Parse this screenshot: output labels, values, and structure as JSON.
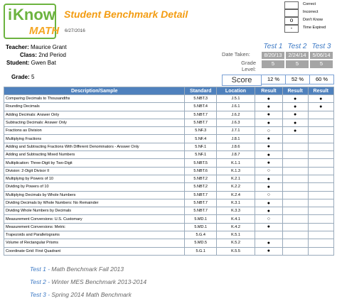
{
  "header": {
    "logo_i": "i",
    "logo_know": "Know",
    "logo_math": "MATH",
    "title": "Student Benchmark Detail",
    "date": "6/27/2016"
  },
  "legend": [
    {
      "label": "Correct"
    },
    {
      "label": "Incorrect"
    },
    {
      "symbol": "o",
      "label": "Don't Know"
    },
    {
      "symbol": "-",
      "label": "Time Expired"
    }
  ],
  "student": {
    "teacher_label": "Teacher:",
    "teacher": "Maurice Grant",
    "class_label": "Class:",
    "class": "2nd Period",
    "student_label": "Student:",
    "student": "Gwen Bat",
    "grade_label": "Grade:",
    "grade": "5"
  },
  "tests": {
    "names": [
      "Test 1",
      "Test 2",
      "Test 3"
    ],
    "date_label": "Date Taken:",
    "dates": [
      "8/20/13",
      "2/24/14",
      "5/06/14"
    ],
    "grade_label": "Grade Level:",
    "grades": [
      "5",
      "5",
      "5"
    ],
    "score_label": "Score",
    "scores": [
      "12 %",
      "52 %",
      "60 %"
    ]
  },
  "table": {
    "columns": [
      "Description/Sample",
      "Standard",
      "Location",
      "Result",
      "Result",
      "Result"
    ],
    "rows": [
      [
        "Comparing Decimals to Thousandths",
        "5.NBT.3",
        "J.5.1",
        "●",
        "●",
        "●"
      ],
      [
        "Rounding Decimals",
        "5.NBT.4",
        "J.6.1",
        "●",
        "●",
        "●"
      ],
      [
        "Adding Decimals: Answer Only",
        "5.NBT.7",
        "J.6.2",
        "●",
        "●",
        null
      ],
      [
        "Subtracting Decimals: Answer Only",
        "5.NBT.7",
        "J.6.3",
        "●",
        "●",
        null
      ],
      [
        "Fractions as Division",
        "5.NF.3",
        "J.7.1",
        "○",
        "●",
        null
      ],
      [
        "Multiplying Fractions",
        "5.NF.4",
        "J.8.1",
        "●",
        null,
        null
      ],
      [
        "Adding and Subtracting Fractions With Different Denominators - Answer Only",
        "5.NF.1",
        "J.8.6",
        "●",
        null,
        null
      ],
      [
        "Adding and Subtracting Mixed Numbers",
        "5.NF.1",
        "J.8.7",
        "●",
        null,
        null
      ],
      [
        "Multiplication: Three-Digit by Two-Digit",
        "5.NBT.5",
        "K.1.1",
        "●",
        null,
        null
      ],
      [
        "Division: 2-Digit Divisor II",
        "5.NBT.6",
        "K.1.3",
        "○",
        null,
        null
      ],
      [
        "Multiplying by Powers of 10",
        "5.NBT.2",
        "K.2.1",
        "●",
        null,
        null
      ],
      [
        "Dividing by Powers of 10",
        "5.NBT.2",
        "K.2.2",
        "●",
        null,
        null
      ],
      [
        "Multiplying Decimals by Whole Numbers",
        "5.NBT.7",
        "K.2.4",
        "○",
        null,
        null
      ],
      [
        "Dividing Decimals by Whole Numbers: No Remainder",
        "5.NBT.7",
        "K.3.1",
        "●",
        null,
        null
      ],
      [
        "Dividing Whole Numbers by Decimals",
        "5.NBT.7",
        "K.3.3",
        "●",
        null,
        null
      ],
      [
        "Measurement Conversions: U.S. Customary",
        "5.MD.1",
        "K.4.1",
        "○",
        null,
        null
      ],
      [
        "Measurement Conversions: Metric",
        "5.MD.1",
        "K.4.2",
        "●",
        null,
        null
      ],
      [
        "Trapezoids and Parallelograms",
        "5.G.4",
        "K.5.1",
        null,
        null,
        null
      ],
      [
        "Volume of Rectangular Prisms",
        "5.MD.5",
        "K.5.2",
        "●",
        null,
        null
      ],
      [
        "Coordinate Grid: First Quadrant",
        "5.G.1",
        "K.5.5",
        "●",
        null,
        null
      ]
    ]
  },
  "footer": [
    {
      "test": "Test 1 -",
      "name": "Math Benchmark Fall 2013"
    },
    {
      "test": "Test 2 -",
      "name": "Winter MES Benchmark 2013-2014"
    },
    {
      "test": "Test 3 -",
      "name": "Spring 2014 Math Benchmark"
    }
  ]
}
